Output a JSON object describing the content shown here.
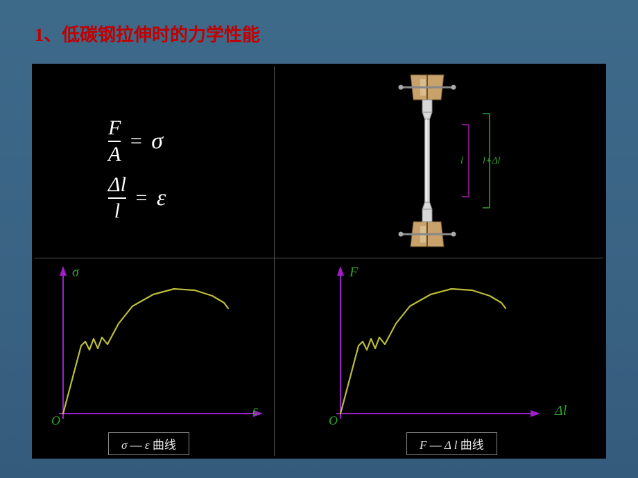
{
  "title": {
    "prefix": "1、",
    "text": "低碳钢拉伸时的力学性能",
    "color": "#c00000",
    "fontsize": 26
  },
  "panel_bg": "#000000",
  "formula1": {
    "numerator": "F",
    "denominator": "A",
    "rhs": "σ",
    "fontsize": 30
  },
  "formula2": {
    "numerator": "Δl",
    "denominator": "l",
    "rhs": "ε",
    "fontsize": 30
  },
  "specimen": {
    "grip_color": "#c9a26b",
    "grip_highlight": "#e6cfa1",
    "bar_color": "#d8d8d8",
    "bar_shadow": "#8a8a8a",
    "dim_color": "#a020a0",
    "dim2_color": "#2aa62a",
    "labels": {
      "l": "l",
      "ldl": "l+Δl"
    }
  },
  "chart_bl": {
    "type": "line",
    "y_axis_label": "σ",
    "x_axis_label": "ε",
    "origin_label": "O",
    "caption": "σ — ε 曲线",
    "axis_color": "#a020c8",
    "curve_color": "#bdbd3b",
    "label_color": "#2aa62a",
    "xlim": [
      0,
      260
    ],
    "ylim": [
      0,
      190
    ],
    "points": [
      [
        0,
        0
      ],
      [
        26,
        98
      ],
      [
        32,
        104
      ],
      [
        38,
        92
      ],
      [
        44,
        108
      ],
      [
        50,
        94
      ],
      [
        56,
        110
      ],
      [
        64,
        100
      ],
      [
        80,
        130
      ],
      [
        100,
        155
      ],
      [
        130,
        172
      ],
      [
        160,
        180
      ],
      [
        190,
        178
      ],
      [
        215,
        170
      ],
      [
        232,
        160
      ],
      [
        238,
        152
      ]
    ],
    "line_width": 2.2
  },
  "chart_br": {
    "type": "line",
    "y_axis_label": "F",
    "x_axis_label": "Δl",
    "origin_label": "O",
    "caption": "F — Δ l 曲线",
    "axis_color": "#a020c8",
    "curve_color": "#bdbd3b",
    "label_color": "#2aa62a",
    "xlim": [
      0,
      260
    ],
    "ylim": [
      0,
      190
    ],
    "points": [
      [
        0,
        0
      ],
      [
        26,
        98
      ],
      [
        32,
        104
      ],
      [
        38,
        92
      ],
      [
        44,
        108
      ],
      [
        50,
        94
      ],
      [
        56,
        110
      ],
      [
        64,
        100
      ],
      [
        80,
        130
      ],
      [
        100,
        155
      ],
      [
        130,
        172
      ],
      [
        160,
        180
      ],
      [
        190,
        178
      ],
      [
        215,
        170
      ],
      [
        232,
        160
      ],
      [
        238,
        152
      ]
    ],
    "line_width": 2.2
  }
}
